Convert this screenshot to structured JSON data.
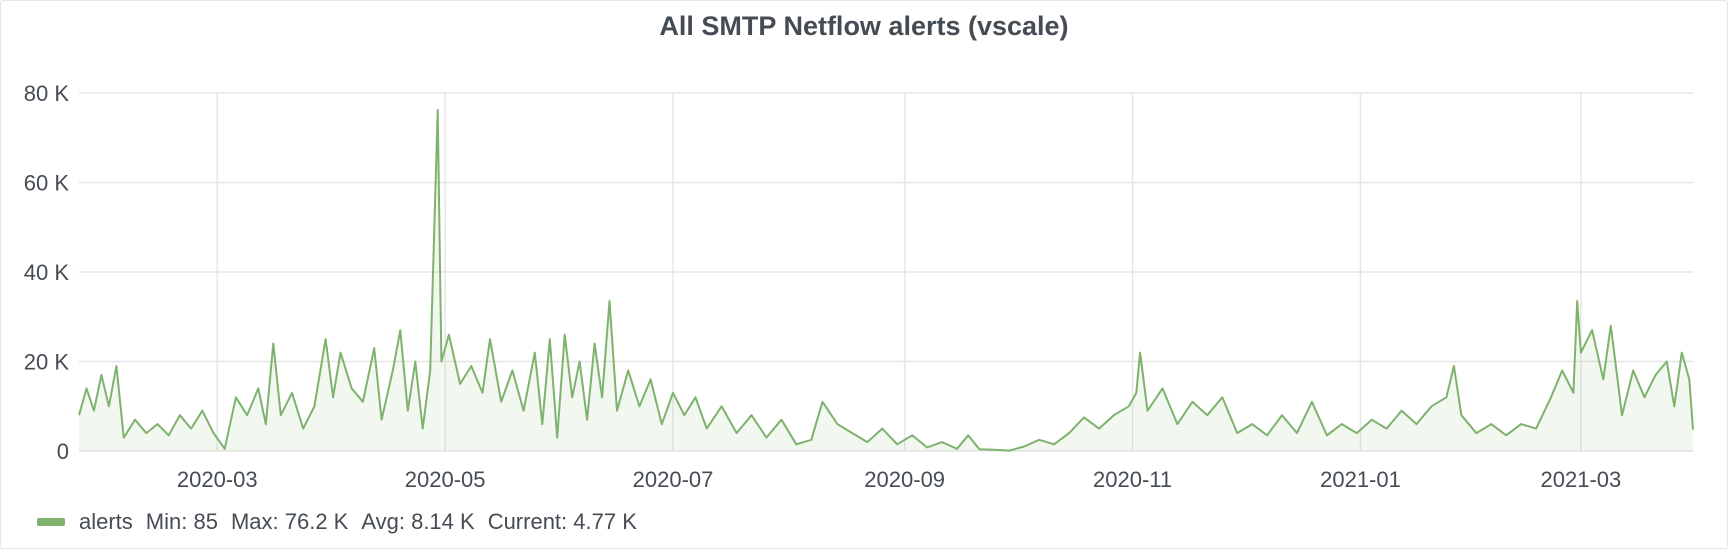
{
  "panel": {
    "title": "All SMTP Netflow alerts (vscale)"
  },
  "legend": {
    "series_name": "alerts",
    "min": "Min: 85",
    "max": "Max: 76.2 K",
    "avg": "Avg: 8.14 K",
    "current": "Current: 4.77 K",
    "color": "#7eb26d"
  },
  "chart_data": {
    "type": "area",
    "title": "All SMTP Netflow alerts (vscale)",
    "xlabel": "",
    "ylabel": "",
    "ylim": [
      0,
      80000
    ],
    "xlim": [
      "2020-01-24",
      "2021-03-31"
    ],
    "y_ticks": [
      "0",
      "20 K",
      "40 K",
      "60 K",
      "80 K"
    ],
    "y_tick_values": [
      0,
      20000,
      40000,
      60000,
      80000
    ],
    "x_ticks": [
      "2020-03",
      "2020-05",
      "2020-07",
      "2020-09",
      "2020-11",
      "2021-01",
      "2021-03"
    ],
    "x_tick_dates": [
      "2020-03-01",
      "2020-05-01",
      "2020-07-01",
      "2020-09-01",
      "2020-11-01",
      "2021-01-01",
      "2021-03-01"
    ],
    "grid": true,
    "legend_position": "bottom-left",
    "series": [
      {
        "name": "alerts",
        "color": "#7eb26d",
        "points": [
          [
            "2020-01-24",
            8000
          ],
          [
            "2020-01-26",
            14000
          ],
          [
            "2020-01-28",
            9000
          ],
          [
            "2020-01-30",
            17000
          ],
          [
            "2020-02-01",
            10000
          ],
          [
            "2020-02-03",
            19000
          ],
          [
            "2020-02-05",
            3000
          ],
          [
            "2020-02-08",
            7000
          ],
          [
            "2020-02-11",
            4000
          ],
          [
            "2020-02-14",
            6000
          ],
          [
            "2020-02-17",
            3500
          ],
          [
            "2020-02-20",
            8000
          ],
          [
            "2020-02-23",
            5000
          ],
          [
            "2020-02-26",
            9000
          ],
          [
            "2020-02-29",
            4000
          ],
          [
            "2020-03-03",
            500
          ],
          [
            "2020-03-06",
            12000
          ],
          [
            "2020-03-09",
            8000
          ],
          [
            "2020-03-12",
            14000
          ],
          [
            "2020-03-14",
            6000
          ],
          [
            "2020-03-16",
            24000
          ],
          [
            "2020-03-18",
            8000
          ],
          [
            "2020-03-21",
            13000
          ],
          [
            "2020-03-24",
            5000
          ],
          [
            "2020-03-27",
            10000
          ],
          [
            "2020-03-30",
            25000
          ],
          [
            "2020-04-01",
            12000
          ],
          [
            "2020-04-03",
            22000
          ],
          [
            "2020-04-06",
            14000
          ],
          [
            "2020-04-09",
            11000
          ],
          [
            "2020-04-12",
            23000
          ],
          [
            "2020-04-14",
            7000
          ],
          [
            "2020-04-17",
            18000
          ],
          [
            "2020-04-19",
            27000
          ],
          [
            "2020-04-21",
            9000
          ],
          [
            "2020-04-23",
            20000
          ],
          [
            "2020-04-25",
            5000
          ],
          [
            "2020-04-27",
            18000
          ],
          [
            "2020-04-29",
            76200
          ],
          [
            "2020-04-30",
            20000
          ],
          [
            "2020-05-02",
            26000
          ],
          [
            "2020-05-05",
            15000
          ],
          [
            "2020-05-08",
            19000
          ],
          [
            "2020-05-11",
            13000
          ],
          [
            "2020-05-13",
            25000
          ],
          [
            "2020-05-16",
            11000
          ],
          [
            "2020-05-19",
            18000
          ],
          [
            "2020-05-22",
            9000
          ],
          [
            "2020-05-25",
            22000
          ],
          [
            "2020-05-27",
            6000
          ],
          [
            "2020-05-29",
            25000
          ],
          [
            "2020-05-31",
            3000
          ],
          [
            "2020-06-02",
            26000
          ],
          [
            "2020-06-04",
            12000
          ],
          [
            "2020-06-06",
            20000
          ],
          [
            "2020-06-08",
            7000
          ],
          [
            "2020-06-10",
            24000
          ],
          [
            "2020-06-12",
            12000
          ],
          [
            "2020-06-14",
            33500
          ],
          [
            "2020-06-16",
            9000
          ],
          [
            "2020-06-19",
            18000
          ],
          [
            "2020-06-22",
            10000
          ],
          [
            "2020-06-25",
            16000
          ],
          [
            "2020-06-28",
            6000
          ],
          [
            "2020-07-01",
            13000
          ],
          [
            "2020-07-04",
            8000
          ],
          [
            "2020-07-07",
            12000
          ],
          [
            "2020-07-10",
            5000
          ],
          [
            "2020-07-14",
            10000
          ],
          [
            "2020-07-18",
            4000
          ],
          [
            "2020-07-22",
            8000
          ],
          [
            "2020-07-26",
            3000
          ],
          [
            "2020-07-30",
            7000
          ],
          [
            "2020-08-03",
            1500
          ],
          [
            "2020-08-07",
            2500
          ],
          [
            "2020-08-10",
            11000
          ],
          [
            "2020-08-14",
            6000
          ],
          [
            "2020-08-18",
            4000
          ],
          [
            "2020-08-22",
            2000
          ],
          [
            "2020-08-26",
            5000
          ],
          [
            "2020-08-30",
            1500
          ],
          [
            "2020-09-03",
            3500
          ],
          [
            "2020-09-07",
            800
          ],
          [
            "2020-09-11",
            2000
          ],
          [
            "2020-09-15",
            500
          ],
          [
            "2020-09-18",
            3500
          ],
          [
            "2020-09-21",
            400
          ],
          [
            "2020-09-25",
            300
          ],
          [
            "2020-09-29",
            85
          ],
          [
            "2020-10-03",
            1000
          ],
          [
            "2020-10-07",
            2500
          ],
          [
            "2020-10-11",
            1500
          ],
          [
            "2020-10-15",
            4000
          ],
          [
            "2020-10-19",
            7500
          ],
          [
            "2020-10-23",
            5000
          ],
          [
            "2020-10-27",
            8000
          ],
          [
            "2020-10-31",
            10000
          ],
          [
            "2020-11-02",
            13000
          ],
          [
            "2020-11-03",
            22000
          ],
          [
            "2020-11-05",
            9000
          ],
          [
            "2020-11-09",
            14000
          ],
          [
            "2020-11-13",
            6000
          ],
          [
            "2020-11-17",
            11000
          ],
          [
            "2020-11-21",
            8000
          ],
          [
            "2020-11-25",
            12000
          ],
          [
            "2020-11-29",
            4000
          ],
          [
            "2020-12-03",
            6000
          ],
          [
            "2020-12-07",
            3500
          ],
          [
            "2020-12-11",
            8000
          ],
          [
            "2020-12-15",
            4000
          ],
          [
            "2020-12-19",
            11000
          ],
          [
            "2020-12-23",
            3500
          ],
          [
            "2020-12-27",
            6000
          ],
          [
            "2020-12-31",
            4000
          ],
          [
            "2021-01-04",
            7000
          ],
          [
            "2021-01-08",
            5000
          ],
          [
            "2021-01-12",
            9000
          ],
          [
            "2021-01-16",
            6000
          ],
          [
            "2021-01-20",
            10000
          ],
          [
            "2021-01-24",
            12000
          ],
          [
            "2021-01-26",
            19000
          ],
          [
            "2021-01-28",
            8000
          ],
          [
            "2021-02-01",
            4000
          ],
          [
            "2021-02-05",
            6000
          ],
          [
            "2021-02-09",
            3500
          ],
          [
            "2021-02-13",
            6000
          ],
          [
            "2021-02-17",
            5000
          ],
          [
            "2021-02-21",
            12000
          ],
          [
            "2021-02-24",
            18000
          ],
          [
            "2021-02-27",
            13000
          ],
          [
            "2021-02-28",
            33500
          ],
          [
            "2021-03-01",
            22000
          ],
          [
            "2021-03-04",
            27000
          ],
          [
            "2021-03-07",
            16000
          ],
          [
            "2021-03-09",
            28000
          ],
          [
            "2021-03-12",
            8000
          ],
          [
            "2021-03-15",
            18000
          ],
          [
            "2021-03-18",
            12000
          ],
          [
            "2021-03-21",
            17000
          ],
          [
            "2021-03-24",
            20000
          ],
          [
            "2021-03-26",
            10000
          ],
          [
            "2021-03-28",
            22000
          ],
          [
            "2021-03-30",
            16000
          ],
          [
            "2021-03-31",
            4770
          ]
        ]
      }
    ]
  }
}
